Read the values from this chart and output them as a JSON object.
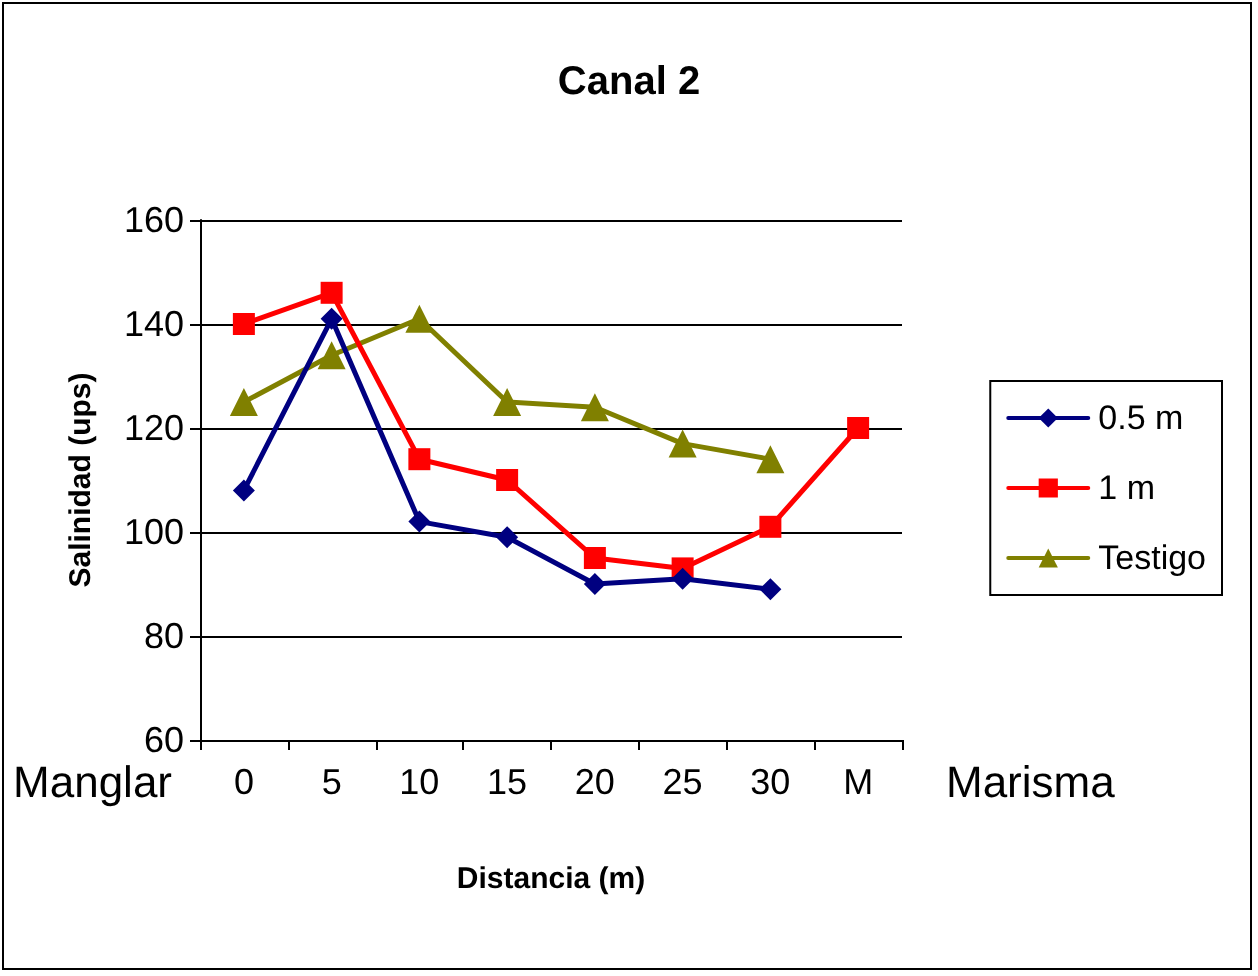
{
  "chart_data": {
    "type": "line",
    "title": "Canal 2",
    "xlabel": "Distancia (m)",
    "ylabel": "Salinidad (ups)",
    "categories": [
      "0",
      "5",
      "10",
      "15",
      "20",
      "25",
      "30",
      "M"
    ],
    "series": [
      {
        "name": "0.5 m",
        "color": "#000080",
        "marker": "diamond",
        "values": [
          108,
          141,
          102,
          99,
          90,
          91,
          89,
          null
        ]
      },
      {
        "name": "1 m",
        "color": "#ff0000",
        "marker": "square",
        "values": [
          140,
          146,
          114,
          110,
          95,
          93,
          101,
          120
        ]
      },
      {
        "name": "Testigo",
        "color": "#808000",
        "marker": "triangle",
        "values": [
          125,
          134,
          141,
          125,
          124,
          117,
          114,
          null
        ]
      }
    ],
    "ylim": [
      60,
      160
    ],
    "yticks": [
      60,
      80,
      100,
      120,
      140,
      160
    ],
    "grid": "y",
    "legend": "right",
    "line_style": "solid",
    "annotations": [
      "Manglar",
      "Marisma"
    ]
  }
}
